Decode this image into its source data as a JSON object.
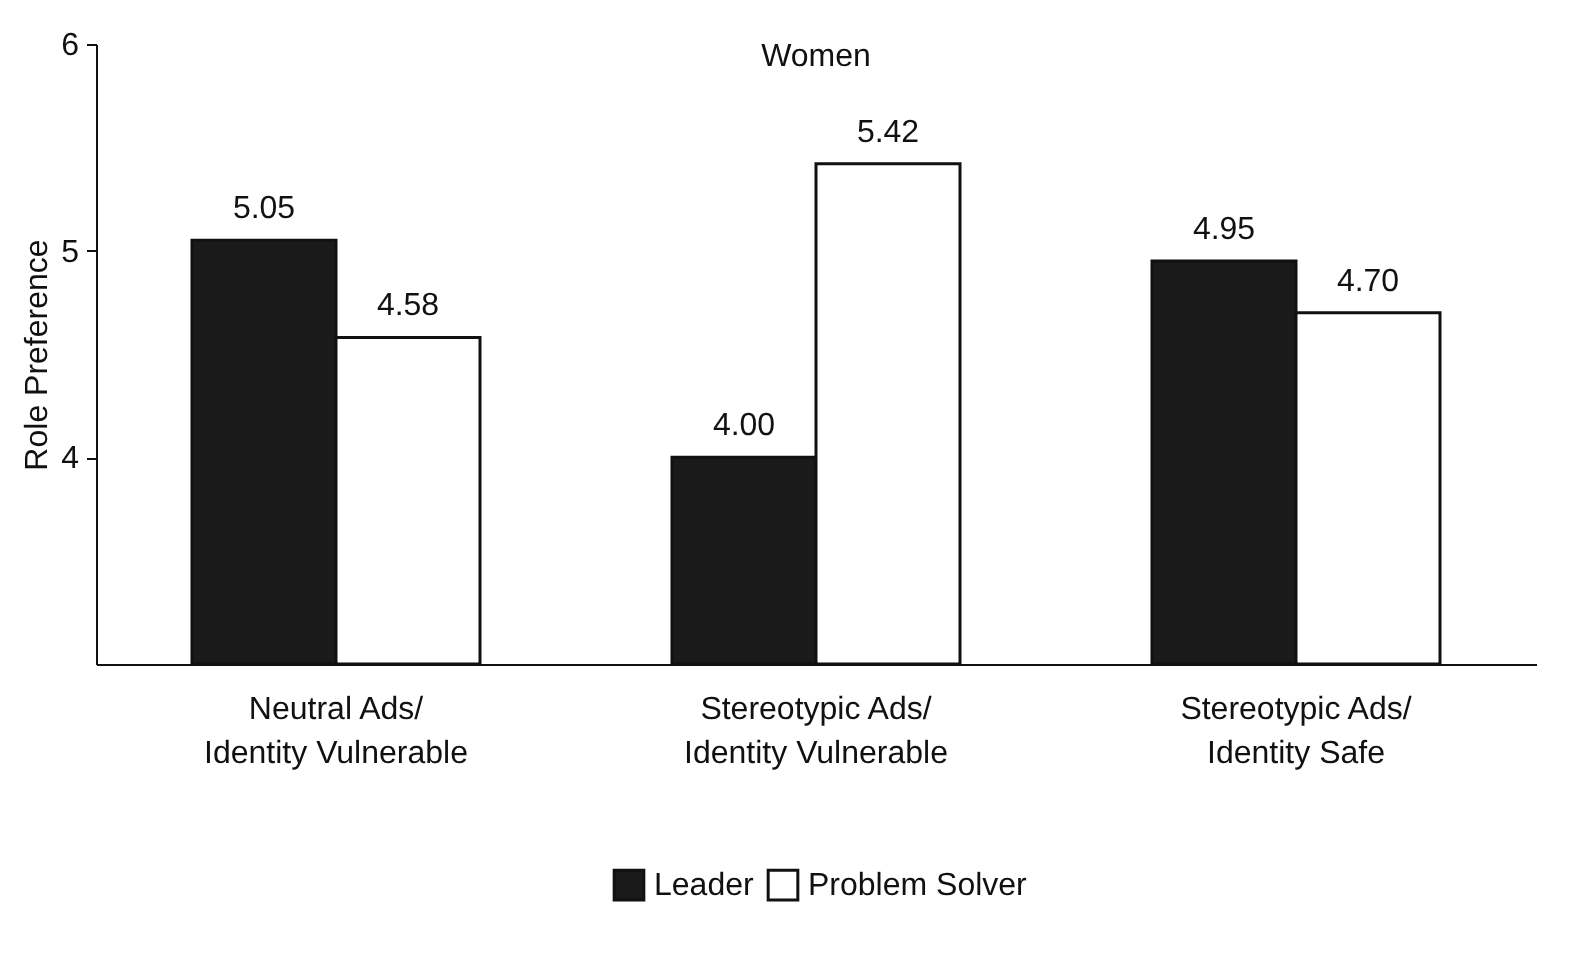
{
  "chart_data": {
    "type": "bar",
    "title": "Women",
    "ylabel": "Role Preference",
    "categories": [
      "Neutral Ads/\nIdentity Vulnerable",
      "Stereotypic Ads/\nIdentity Vulnerable",
      "Stereotypic Ads/\nIdentity Safe"
    ],
    "series": [
      {
        "name": "Leader",
        "color": "#1a1a1a",
        "values": [
          5.05,
          4.0,
          4.95
        ],
        "value_labels": [
          "5.05",
          "4.00",
          "4.95"
        ]
      },
      {
        "name": "Problem Solver",
        "color": "#ffffff",
        "values": [
          4.58,
          5.42,
          4.7
        ],
        "value_labels": [
          "4.58",
          "5.42",
          "4.70"
        ]
      }
    ],
    "ylim": [
      3,
      6
    ],
    "yticks": [
      4,
      5,
      6
    ],
    "grid": false,
    "legend": "bottom"
  }
}
